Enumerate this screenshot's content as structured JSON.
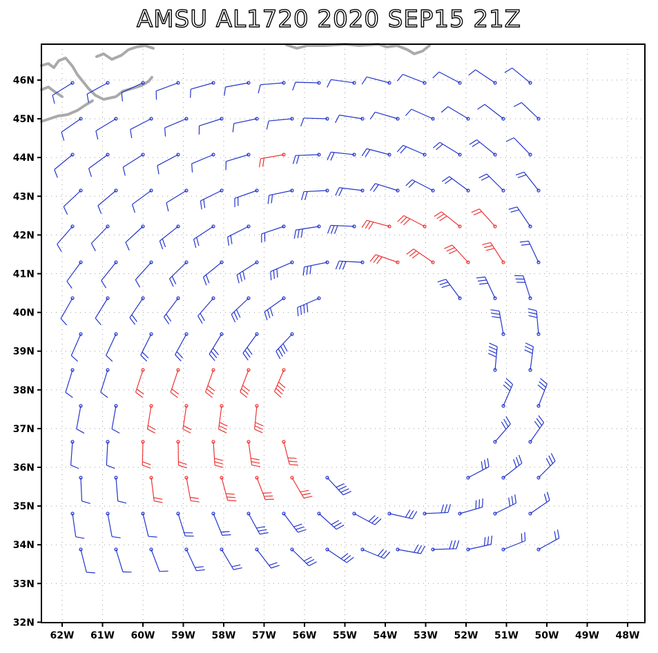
{
  "title": "AMSU AL1720 2020 SEP15 21Z",
  "axes": {
    "lon_labels": [
      "62W",
      "61W",
      "60W",
      "59W",
      "58W",
      "57W",
      "56W",
      "55W",
      "54W",
      "53W",
      "52W",
      "51W",
      "50W",
      "49W",
      "48W"
    ],
    "lat_labels": [
      "46N",
      "45N",
      "44N",
      "43N",
      "42N",
      "41N",
      "40N",
      "39N",
      "38N",
      "37N",
      "36N",
      "35N",
      "34N",
      "33N",
      "32N"
    ],
    "lon_range": [
      -62.5,
      -47.5
    ],
    "lat_range": [
      32,
      46.9
    ]
  },
  "colors": {
    "normal": "#2233cc",
    "high": "#ee3333",
    "coast": "#aaaaaa",
    "grid": "#999999"
  }
}
